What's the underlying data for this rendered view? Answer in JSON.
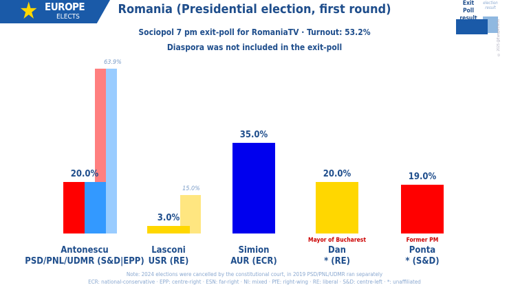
{
  "header": {
    "logo_line1": "EUROPE",
    "logo_line2": "ELECTS",
    "title": "Romania (Presidential election, first round)",
    "subtitle": "Sociopol 7 pm exit-poll for RomaniaTV · Turnout: 53.2%",
    "subtitle2": "Diaspora was not included in the exit-poll"
  },
  "legend": {
    "exit_poll": "Exit Poll result",
    "election": "election result",
    "copyright": "© 2025 @EuropeElects"
  },
  "chart_data": {
    "type": "bar",
    "ylim": [
      0,
      70
    ],
    "categories": [
      {
        "name": "Antonescu",
        "party": "PSD/PNL/UDMR (S&D|EPP)",
        "exit_poll": 20.0,
        "exit_poll_label": "20.0%",
        "exit_poll_colors": [
          "#ff0000",
          "#3399ff"
        ],
        "previous": 63.9,
        "previous_label": "63.9%",
        "previous_colors": [
          "#ff7f7f",
          "#99ccff"
        ],
        "note": ""
      },
      {
        "name": "Lasconi",
        "party": "USR (RE)",
        "exit_poll": 3.0,
        "exit_poll_label": "3.0%",
        "exit_poll_colors": [
          "#ffd700"
        ],
        "previous": 15.0,
        "previous_label": "15.0%",
        "previous_colors": [
          "#ffe680"
        ],
        "note": ""
      },
      {
        "name": "Simion",
        "party": "AUR (ECR)",
        "exit_poll": 35.0,
        "exit_poll_label": "35.0%",
        "exit_poll_colors": [
          "#0000ee"
        ],
        "note": ""
      },
      {
        "name": "Dan",
        "party": "* (RE)",
        "exit_poll": 20.0,
        "exit_poll_label": "20.0%",
        "exit_poll_colors": [
          "#ffd700"
        ],
        "note": "Mayor of Bucharest"
      },
      {
        "name": "Ponta",
        "party": "* (S&D)",
        "exit_poll": 19.0,
        "exit_poll_label": "19.0%",
        "exit_poll_colors": [
          "#ff0000"
        ],
        "note": "Former PM"
      }
    ]
  },
  "footer": {
    "note1": "Note: 2024 elections were cancelled by the constitutional court, in 2019 PSD/PNL/UDMR ran separately",
    "note2": "ECR: national-conservative · EPP: centre-right · ESN: far-right · NI: mixed · PfE: right-wing · RE: liberal · S&D: centre-left · *: unaffiliated"
  }
}
